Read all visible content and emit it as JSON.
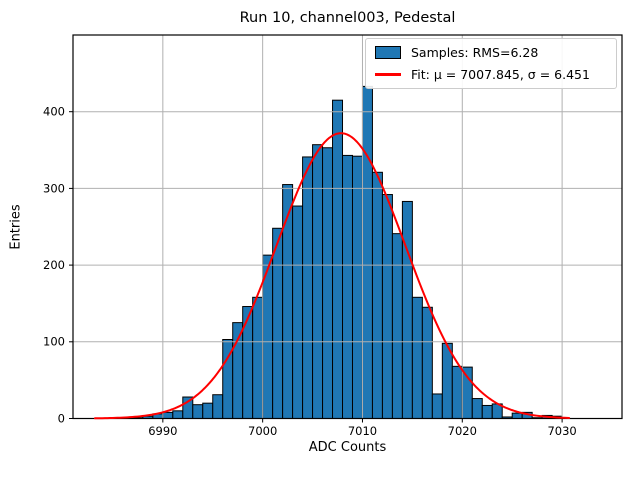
{
  "title": "Run 10, channel003, Pedestal",
  "axes": {
    "xlabel": "ADC Counts",
    "ylabel": "Entries"
  },
  "legend": {
    "samples_label": "Samples: RMS=6.28",
    "fit_label": "Fit: μ = 7007.845, σ = 6.451"
  },
  "colors": {
    "bar_fill": "#1f77b4",
    "bar_edge": "#000000",
    "fit_line": "#ff0000",
    "grid": "#b0b0b0",
    "spine": "#000000",
    "background": "#ffffff"
  },
  "chart_data": {
    "type": "bar",
    "subtype": "histogram",
    "title": "Run 10, channel003, Pedestal",
    "xlabel": "ADC Counts",
    "ylabel": "Entries",
    "xlim": [
      6981,
      7036
    ],
    "ylim": [
      0,
      500
    ],
    "xticks": [
      6990,
      7000,
      7010,
      7020,
      7030
    ],
    "yticks": [
      0,
      100,
      200,
      300,
      400
    ],
    "grid": true,
    "legend_position": "upper right",
    "bin_width": 1,
    "bin_left_edges": [
      6987,
      6988,
      6989,
      6990,
      6991,
      6992,
      6993,
      6994,
      6995,
      6996,
      6997,
      6998,
      6999,
      7000,
      7001,
      7002,
      7003,
      7004,
      7005,
      7006,
      7007,
      7008,
      7009,
      7010,
      7011,
      7012,
      7013,
      7014,
      7015,
      7016,
      7017,
      7018,
      7019,
      7020,
      7021,
      7022,
      7023,
      7024,
      7025,
      7026,
      7027,
      7028,
      7029
    ],
    "counts": [
      1,
      3,
      6,
      8,
      10,
      28,
      18,
      20,
      31,
      103,
      125,
      146,
      158,
      213,
      248,
      305,
      277,
      341,
      357,
      353,
      415,
      343,
      342,
      433,
      321,
      292,
      241,
      283,
      158,
      145,
      32,
      98,
      68,
      67,
      26,
      17,
      19,
      2,
      7,
      8,
      1,
      4,
      3
    ],
    "fit": {
      "type": "gaussian",
      "mu": 7007.845,
      "sigma": 6.451,
      "amplitude": 372,
      "x_range": [
        6983.2,
        7030.7
      ]
    },
    "series_labels": [
      "Samples: RMS=6.28",
      "Fit: μ = 7007.845, σ = 6.451"
    ],
    "stats": {
      "rms": 6.28,
      "fit_mu": 7007.845,
      "fit_sigma": 6.451
    }
  }
}
